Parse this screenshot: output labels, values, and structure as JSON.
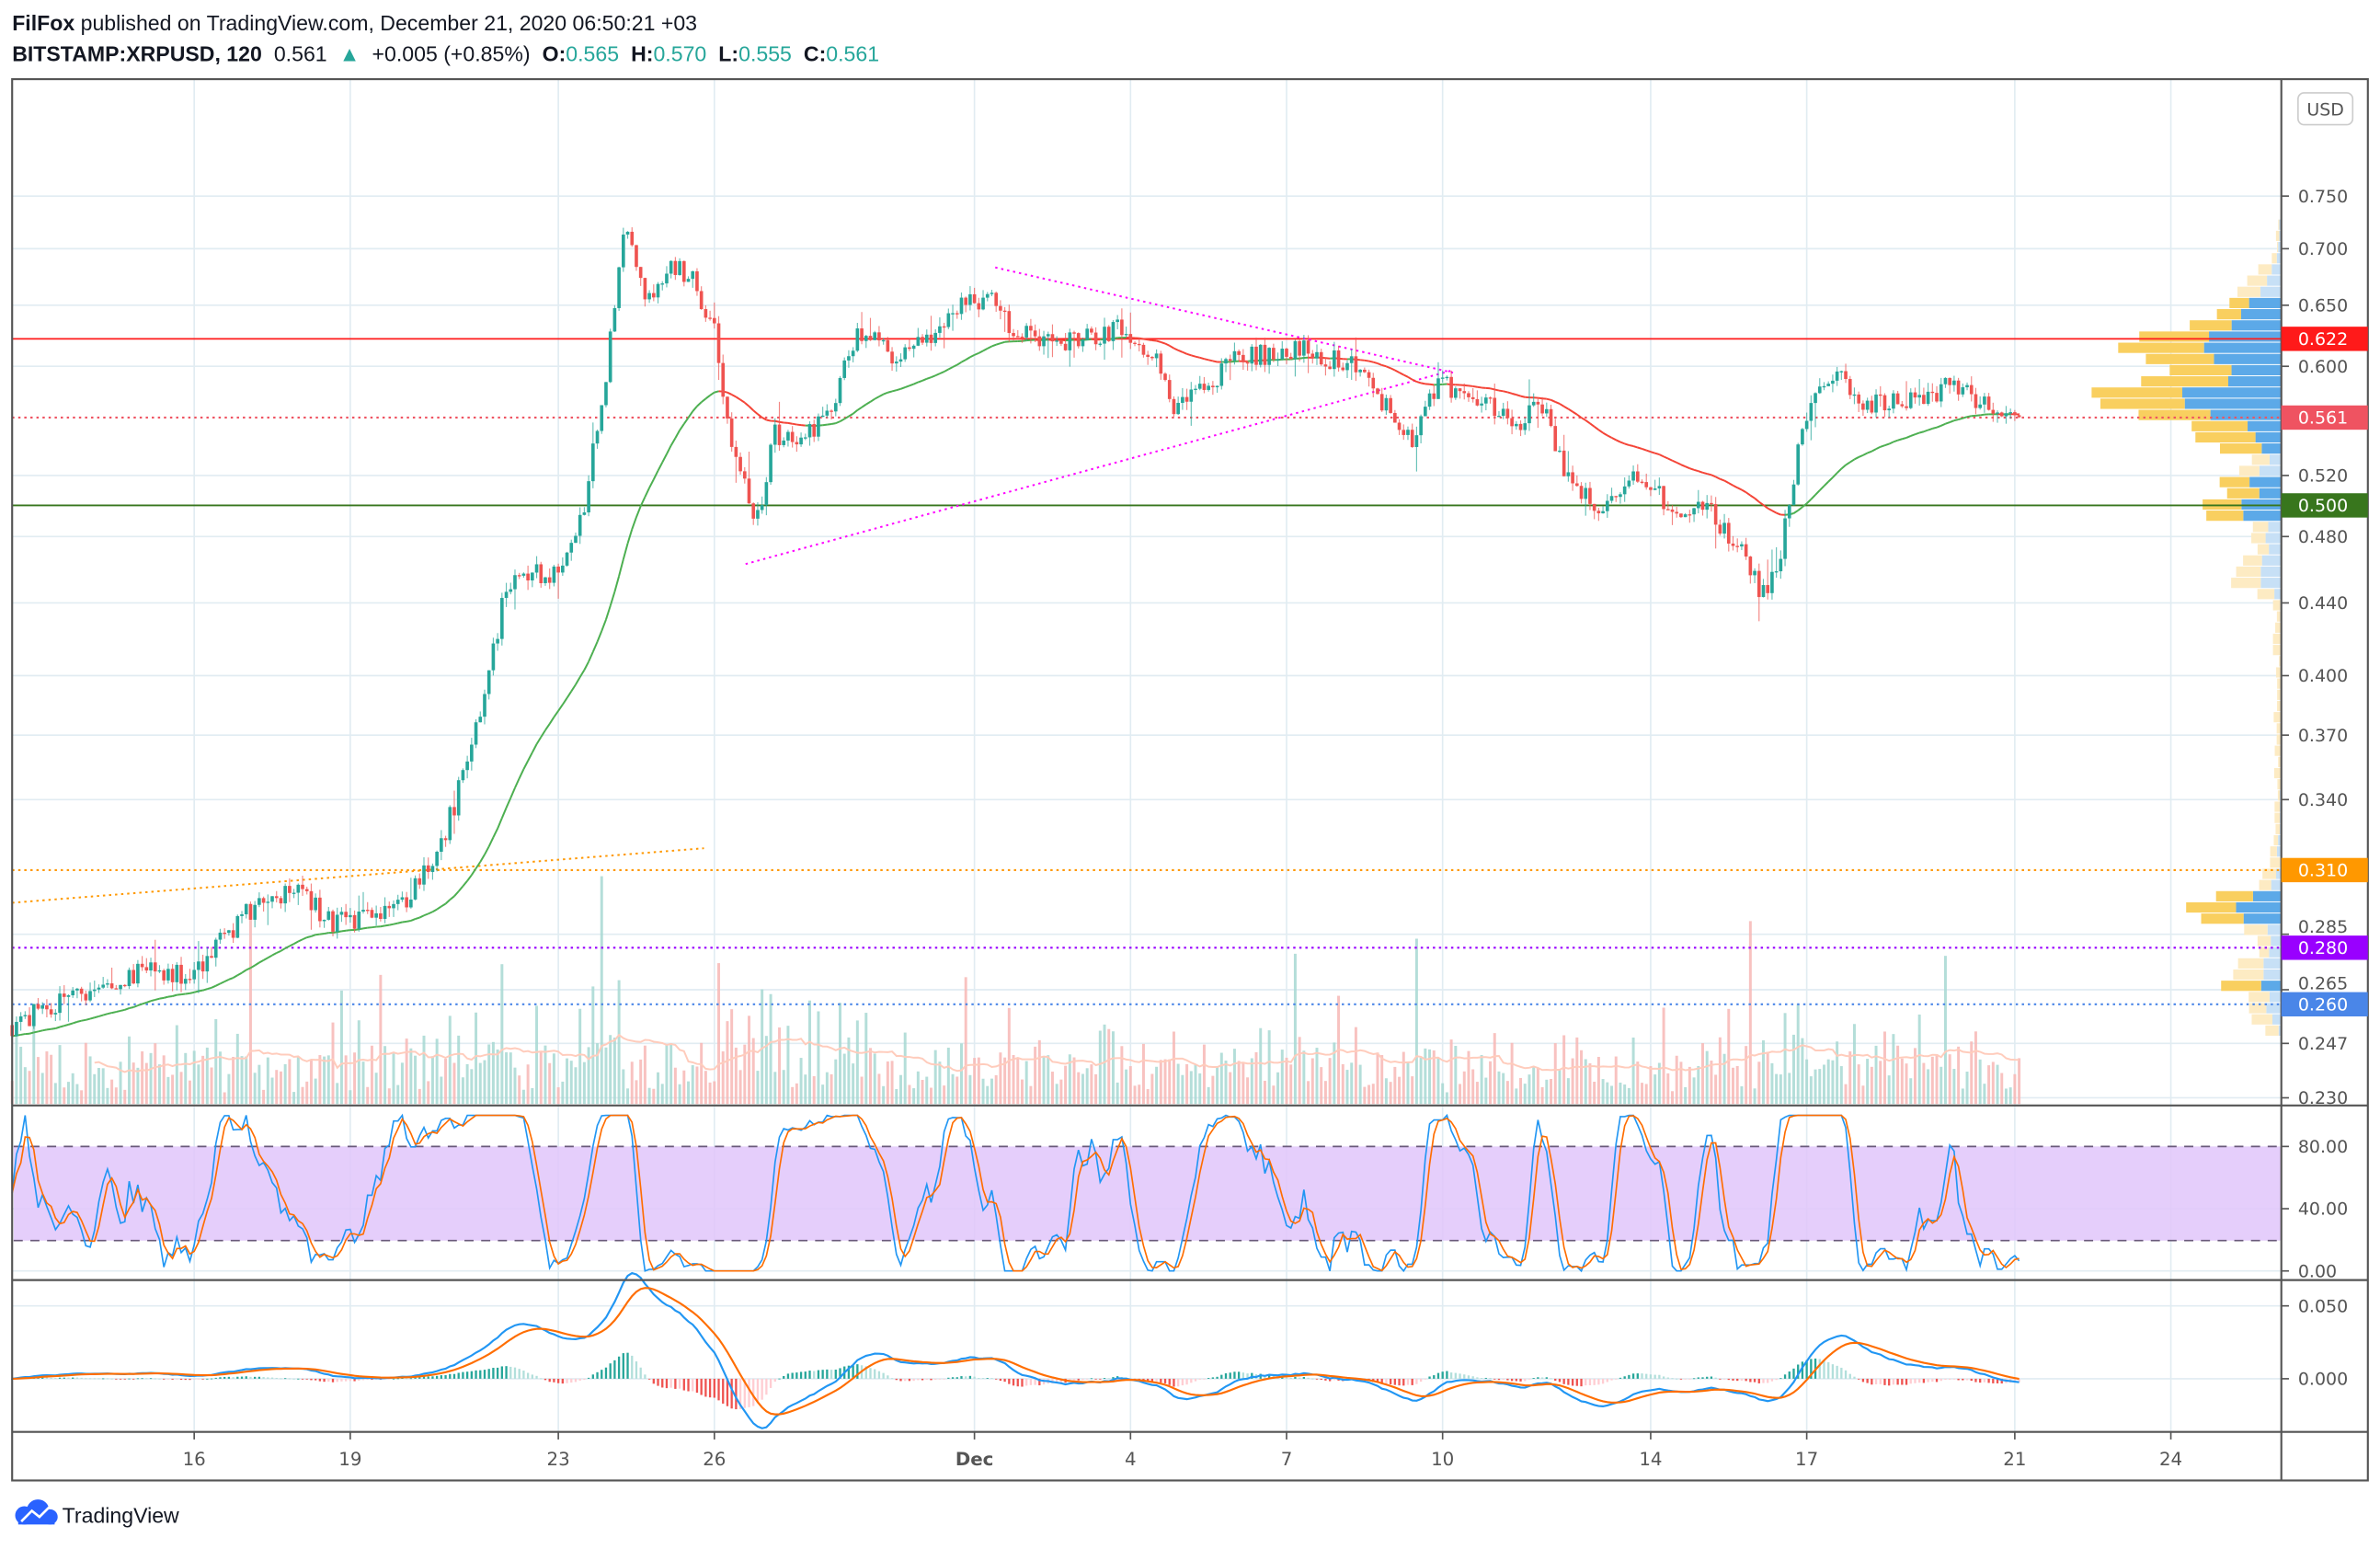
{
  "header": {
    "author": "FilFox",
    "published": " published on TradingView.com, December 21, 2020 06:50:21 +03",
    "symbol": "BITSTAMP:XRPUSD, 120",
    "last": "0.561",
    "change": "+0.005 (+0.85%)",
    "o_label": "O:",
    "o": "0.565",
    "h_label": "H:",
    "h": "0.570",
    "l_label": "L:",
    "l": "0.555",
    "c_label": "C:",
    "c": "0.561"
  },
  "currency_button": "USD",
  "footer": {
    "brand": "TradingView"
  },
  "colors": {
    "up": "#26a69a",
    "down": "#ef5350",
    "grid": "#e1ecf2",
    "ma_up": "#4caf50",
    "ma_down": "#f44336",
    "stoch_k": "#2196f3",
    "stoch_d": "#ff6d00",
    "stoch_band": "#e1c6fa",
    "trend": "#ff00ff"
  },
  "chart_data": {
    "type": "candlestick",
    "symbol": "BITSTAMP:XRPUSD",
    "interval_minutes": 120,
    "time_unit": "days since Nov 0 2020 (Dec 1 = 31)",
    "scale": "log",
    "price_ticks": [
      "0.750",
      "0.700",
      "0.650",
      "0.600",
      "0.520",
      "0.480",
      "0.440",
      "0.400",
      "0.370",
      "0.340",
      "0.285",
      "0.265",
      "0.247",
      "0.230"
    ],
    "price_lines": [
      {
        "label": "0.622",
        "value": 0.622,
        "color": "#ff1a1a",
        "style": "solid"
      },
      {
        "label": "0.561",
        "value": 0.561,
        "color": "#ef5361",
        "style": "dotted"
      },
      {
        "label": "0.500",
        "value": 0.5,
        "color": "#38761d",
        "style": "solid"
      },
      {
        "label": "0.310",
        "value": 0.31,
        "color": "#ff9800",
        "style": "dotted"
      },
      {
        "label": "0.280",
        "value": 0.28,
        "color": "#9900ff",
        "style": "dotted"
      },
      {
        "label": "0.260",
        "value": 0.26,
        "color": "#4a86e8",
        "style": "dotted"
      }
    ],
    "trendlines": [
      {
        "name": "upper-resistance",
        "from": [
          31.4,
          0.683
        ],
        "to": [
          40.2,
          0.595
        ],
        "color": "#ff00ff"
      },
      {
        "name": "lower-support",
        "from": [
          26.6,
          0.463
        ],
        "to": [
          40.2,
          0.597
        ],
        "color": "#ff00ff"
      },
      {
        "name": "orange-trend",
        "from": [
          12.5,
          0.297
        ],
        "to": [
          25.8,
          0.319
        ],
        "color": "#ff9800"
      }
    ],
    "time_labels": [
      {
        "label": "16",
        "t": 16
      },
      {
        "label": "19",
        "t": 19
      },
      {
        "label": "23",
        "t": 23
      },
      {
        "label": "26",
        "t": 26
      },
      {
        "label": "Dec",
        "t": 31
      },
      {
        "label": "4",
        "t": 34
      },
      {
        "label": "7",
        "t": 37
      },
      {
        "label": "10",
        "t": 40
      },
      {
        "label": "14",
        "t": 44
      },
      {
        "label": "17",
        "t": 47
      },
      {
        "label": "21",
        "t": 51
      },
      {
        "label": "24",
        "t": 54
      }
    ],
    "price_path": [
      [
        12.5,
        0.253
      ],
      [
        14.02,
        0.266
      ],
      [
        15.18,
        0.272
      ],
      [
        15.97,
        0.269
      ],
      [
        16.64,
        0.286
      ],
      [
        17.37,
        0.299
      ],
      [
        18.1,
        0.3
      ],
      [
        18.54,
        0.29
      ],
      [
        19.42,
        0.29
      ],
      [
        20.15,
        0.3
      ],
      [
        20.58,
        0.312
      ],
      [
        21.02,
        0.338
      ],
      [
        21.6,
        0.395
      ],
      [
        22.04,
        0.454
      ],
      [
        22.48,
        0.458
      ],
      [
        23.06,
        0.454
      ],
      [
        23.5,
        0.5
      ],
      [
        23.94,
        0.6
      ],
      [
        24.29,
        0.727
      ],
      [
        24.67,
        0.651
      ],
      [
        25.11,
        0.684
      ],
      [
        25.54,
        0.678
      ],
      [
        25.98,
        0.632
      ],
      [
        26.21,
        0.566
      ],
      [
        26.56,
        0.514
      ],
      [
        26.86,
        0.49
      ],
      [
        27.15,
        0.55
      ],
      [
        27.59,
        0.54
      ],
      [
        28.17,
        0.56
      ],
      [
        28.75,
        0.627
      ],
      [
        29.48,
        0.608
      ],
      [
        30.07,
        0.62
      ],
      [
        30.65,
        0.645
      ],
      [
        31.38,
        0.658
      ],
      [
        31.67,
        0.627
      ],
      [
        32.69,
        0.62
      ],
      [
        33.86,
        0.632
      ],
      [
        34.44,
        0.608
      ],
      [
        34.88,
        0.566
      ],
      [
        35.61,
        0.589
      ],
      [
        36.05,
        0.608
      ],
      [
        36.78,
        0.608
      ],
      [
        37.36,
        0.613
      ],
      [
        38.24,
        0.6
      ],
      [
        38.97,
        0.566
      ],
      [
        39.4,
        0.545
      ],
      [
        39.93,
        0.589
      ],
      [
        40.72,
        0.572
      ],
      [
        41.45,
        0.555
      ],
      [
        41.88,
        0.572
      ],
      [
        42.32,
        0.528
      ],
      [
        42.91,
        0.499
      ],
      [
        43.64,
        0.517
      ],
      [
        44.36,
        0.502
      ],
      [
        45.24,
        0.493
      ],
      [
        45.82,
        0.469
      ],
      [
        46.12,
        0.447
      ],
      [
        46.47,
        0.459
      ],
      [
        46.64,
        0.502
      ],
      [
        46.99,
        0.566
      ],
      [
        47.57,
        0.595
      ],
      [
        48.01,
        0.572
      ],
      [
        48.6,
        0.572
      ],
      [
        49.03,
        0.577
      ],
      [
        49.76,
        0.583
      ],
      [
        50.49,
        0.572
      ],
      [
        51.08,
        0.561
      ]
    ],
    "stoch_ticks": [
      "80.00",
      "40.00",
      "0.00"
    ],
    "stoch_bands": [
      20,
      80
    ],
    "macd_ticks": [
      "0.050",
      "0.000"
    ]
  }
}
